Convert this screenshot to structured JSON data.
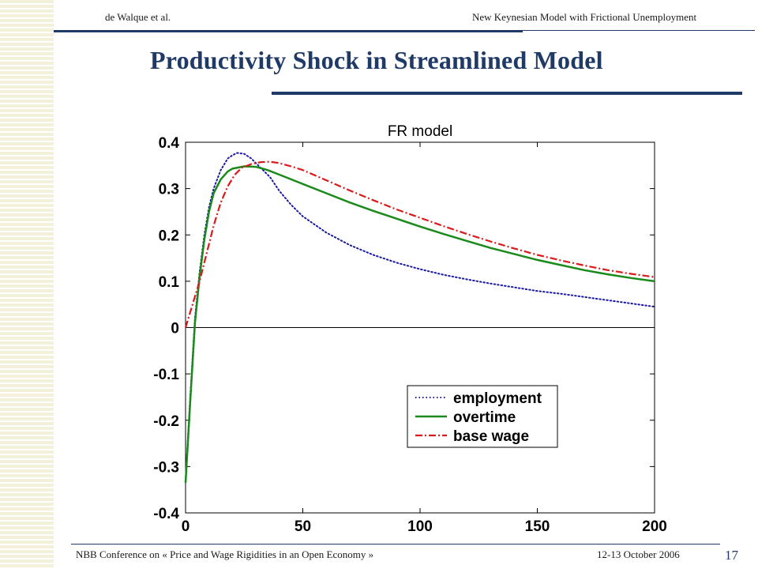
{
  "slide": {
    "header_left": "de Walque et al.",
    "header_right": "New Keynesian Model  with Frictional Unemployment",
    "title": "Productivity Shock in Streamlined  Model",
    "footer_left": "NBB Conference on « Price and Wage Rigidities in an Open Economy »",
    "footer_right": "12-13 October 2006",
    "page_number": "17"
  },
  "chart_data": {
    "type": "line",
    "title": "FR model",
    "xlabel": "",
    "ylabel": "",
    "xlim": [
      0,
      200
    ],
    "ylim": [
      -0.4,
      0.4
    ],
    "x_ticks": [
      "0",
      "50",
      "100",
      "150",
      "200"
    ],
    "y_ticks": [
      "0.4",
      "0.3",
      "0.2",
      "0.1",
      "0",
      "-0.1",
      "-0.2",
      "-0.3",
      "-0.4"
    ],
    "zero_line": true,
    "grid": false,
    "legend_position": "lower-right",
    "series": [
      {
        "name": "employment",
        "color": "#1a1aa6",
        "style": "dotted",
        "points": [
          [
            0,
            -0.33
          ],
          [
            2,
            -0.15
          ],
          [
            4,
            0.02
          ],
          [
            6,
            0.12
          ],
          [
            8,
            0.2
          ],
          [
            10,
            0.26
          ],
          [
            12,
            0.3
          ],
          [
            15,
            0.34
          ],
          [
            18,
            0.365
          ],
          [
            20,
            0.372
          ],
          [
            22,
            0.377
          ],
          [
            25,
            0.375
          ],
          [
            28,
            0.365
          ],
          [
            32,
            0.345
          ],
          [
            36,
            0.325
          ],
          [
            40,
            0.295
          ],
          [
            45,
            0.265
          ],
          [
            50,
            0.24
          ],
          [
            60,
            0.205
          ],
          [
            70,
            0.178
          ],
          [
            80,
            0.157
          ],
          [
            90,
            0.14
          ],
          [
            100,
            0.126
          ],
          [
            110,
            0.114
          ],
          [
            120,
            0.104
          ],
          [
            130,
            0.095
          ],
          [
            140,
            0.087
          ],
          [
            150,
            0.079
          ],
          [
            160,
            0.073
          ],
          [
            170,
            0.066
          ],
          [
            180,
            0.059
          ],
          [
            190,
            0.052
          ],
          [
            200,
            0.045
          ]
        ]
      },
      {
        "name": "overtime",
        "color": "#1a8a1a",
        "style": "solid",
        "points": [
          [
            0,
            -0.335
          ],
          [
            2,
            -0.16
          ],
          [
            4,
            0.01
          ],
          [
            6,
            0.11
          ],
          [
            8,
            0.19
          ],
          [
            10,
            0.25
          ],
          [
            12,
            0.29
          ],
          [
            15,
            0.32
          ],
          [
            18,
            0.337
          ],
          [
            20,
            0.343
          ],
          [
            25,
            0.348
          ],
          [
            30,
            0.347
          ],
          [
            35,
            0.34
          ],
          [
            40,
            0.33
          ],
          [
            50,
            0.31
          ],
          [
            60,
            0.29
          ],
          [
            70,
            0.27
          ],
          [
            80,
            0.252
          ],
          [
            90,
            0.235
          ],
          [
            100,
            0.218
          ],
          [
            110,
            0.202
          ],
          [
            120,
            0.187
          ],
          [
            130,
            0.172
          ],
          [
            140,
            0.159
          ],
          [
            150,
            0.146
          ],
          [
            160,
            0.135
          ],
          [
            170,
            0.124
          ],
          [
            180,
            0.115
          ],
          [
            190,
            0.107
          ],
          [
            200,
            0.1
          ]
        ]
      },
      {
        "name": "base wage",
        "color": "#d91a1a",
        "style": "dashdot",
        "points": [
          [
            0,
            0.0
          ],
          [
            3,
            0.05
          ],
          [
            6,
            0.1
          ],
          [
            9,
            0.16
          ],
          [
            12,
            0.22
          ],
          [
            15,
            0.27
          ],
          [
            18,
            0.305
          ],
          [
            21,
            0.33
          ],
          [
            24,
            0.345
          ],
          [
            28,
            0.353
          ],
          [
            32,
            0.357
          ],
          [
            36,
            0.358
          ],
          [
            40,
            0.355
          ],
          [
            45,
            0.348
          ],
          [
            50,
            0.34
          ],
          [
            60,
            0.318
          ],
          [
            70,
            0.296
          ],
          [
            80,
            0.275
          ],
          [
            90,
            0.255
          ],
          [
            100,
            0.237
          ],
          [
            110,
            0.219
          ],
          [
            120,
            0.202
          ],
          [
            130,
            0.186
          ],
          [
            140,
            0.171
          ],
          [
            150,
            0.157
          ],
          [
            160,
            0.145
          ],
          [
            170,
            0.134
          ],
          [
            180,
            0.124
          ],
          [
            190,
            0.116
          ],
          [
            200,
            0.109
          ]
        ]
      }
    ]
  }
}
